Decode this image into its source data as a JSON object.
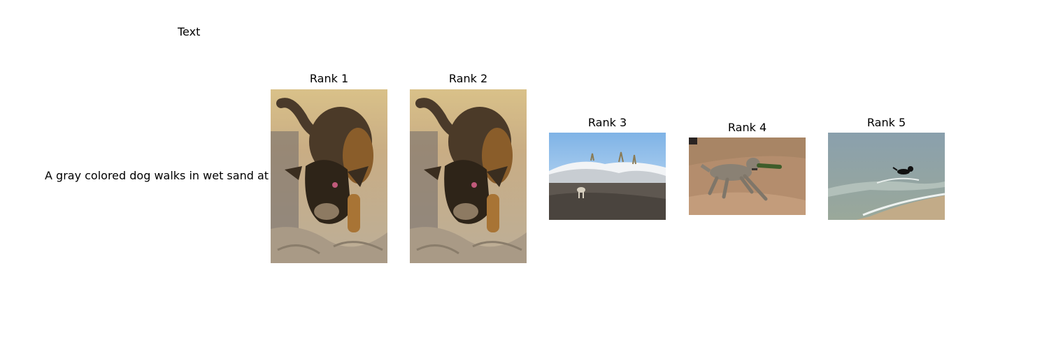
{
  "header": {
    "column_title": "Text"
  },
  "query": {
    "text": "A gray colored dog walks in wet sand at a beach ."
  },
  "results": [
    {
      "title": "Rank 1",
      "image_icon": "dog-digging-sand-photo"
    },
    {
      "title": "Rank 2",
      "image_icon": "dog-digging-sand-photo"
    },
    {
      "title": "Rank 3",
      "image_icon": "dog-on-snowy-dune-photo"
    },
    {
      "title": "Rank 4",
      "image_icon": "gray-dog-on-wet-sand-photo"
    },
    {
      "title": "Rank 5",
      "image_icon": "black-dog-in-surf-photo"
    }
  ]
}
